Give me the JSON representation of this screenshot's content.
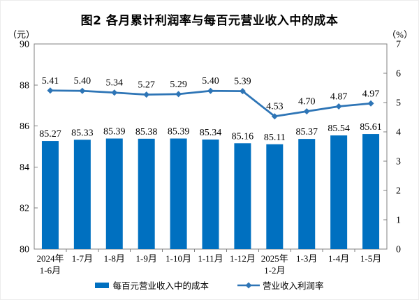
{
  "chart_data": {
    "type": "bar+line",
    "title": "图2 各月累计利润率与每百元营业收入中的成本",
    "categories": [
      [
        "2024年",
        "1-6月"
      ],
      [
        "1-7月"
      ],
      [
        "1-8月"
      ],
      [
        "1-9月"
      ],
      [
        "1-10月"
      ],
      [
        "1-11月"
      ],
      [
        "1-12月"
      ],
      [
        "2025年",
        "1-2月"
      ],
      [
        "1-3月"
      ],
      [
        "1-4月"
      ],
      [
        "1-5月"
      ]
    ],
    "series": [
      {
        "name": "每百元营业收入中的成本",
        "type": "bar",
        "axis": "left",
        "color": "#0070C0",
        "values": [
          85.27,
          85.33,
          85.39,
          85.38,
          85.39,
          85.34,
          85.16,
          85.11,
          85.37,
          85.54,
          85.61
        ]
      },
      {
        "name": "营业收入利润率",
        "type": "line",
        "axis": "right",
        "color": "#2E75B6",
        "marker": "diamond",
        "values": [
          5.41,
          5.4,
          5.34,
          5.27,
          5.29,
          5.4,
          5.39,
          4.53,
          4.7,
          4.87,
          4.97
        ]
      }
    ],
    "left_axis": {
      "unit": "（元）",
      "min": 80,
      "max": 90,
      "step": 2
    },
    "right_axis": {
      "unit": "（%）",
      "min": 0,
      "max": 7,
      "step": 1
    },
    "grid": false,
    "legend_position": "bottom",
    "style": {
      "frame_color": "#808080",
      "text_color": "#000000",
      "background": "#ffffff"
    }
  }
}
